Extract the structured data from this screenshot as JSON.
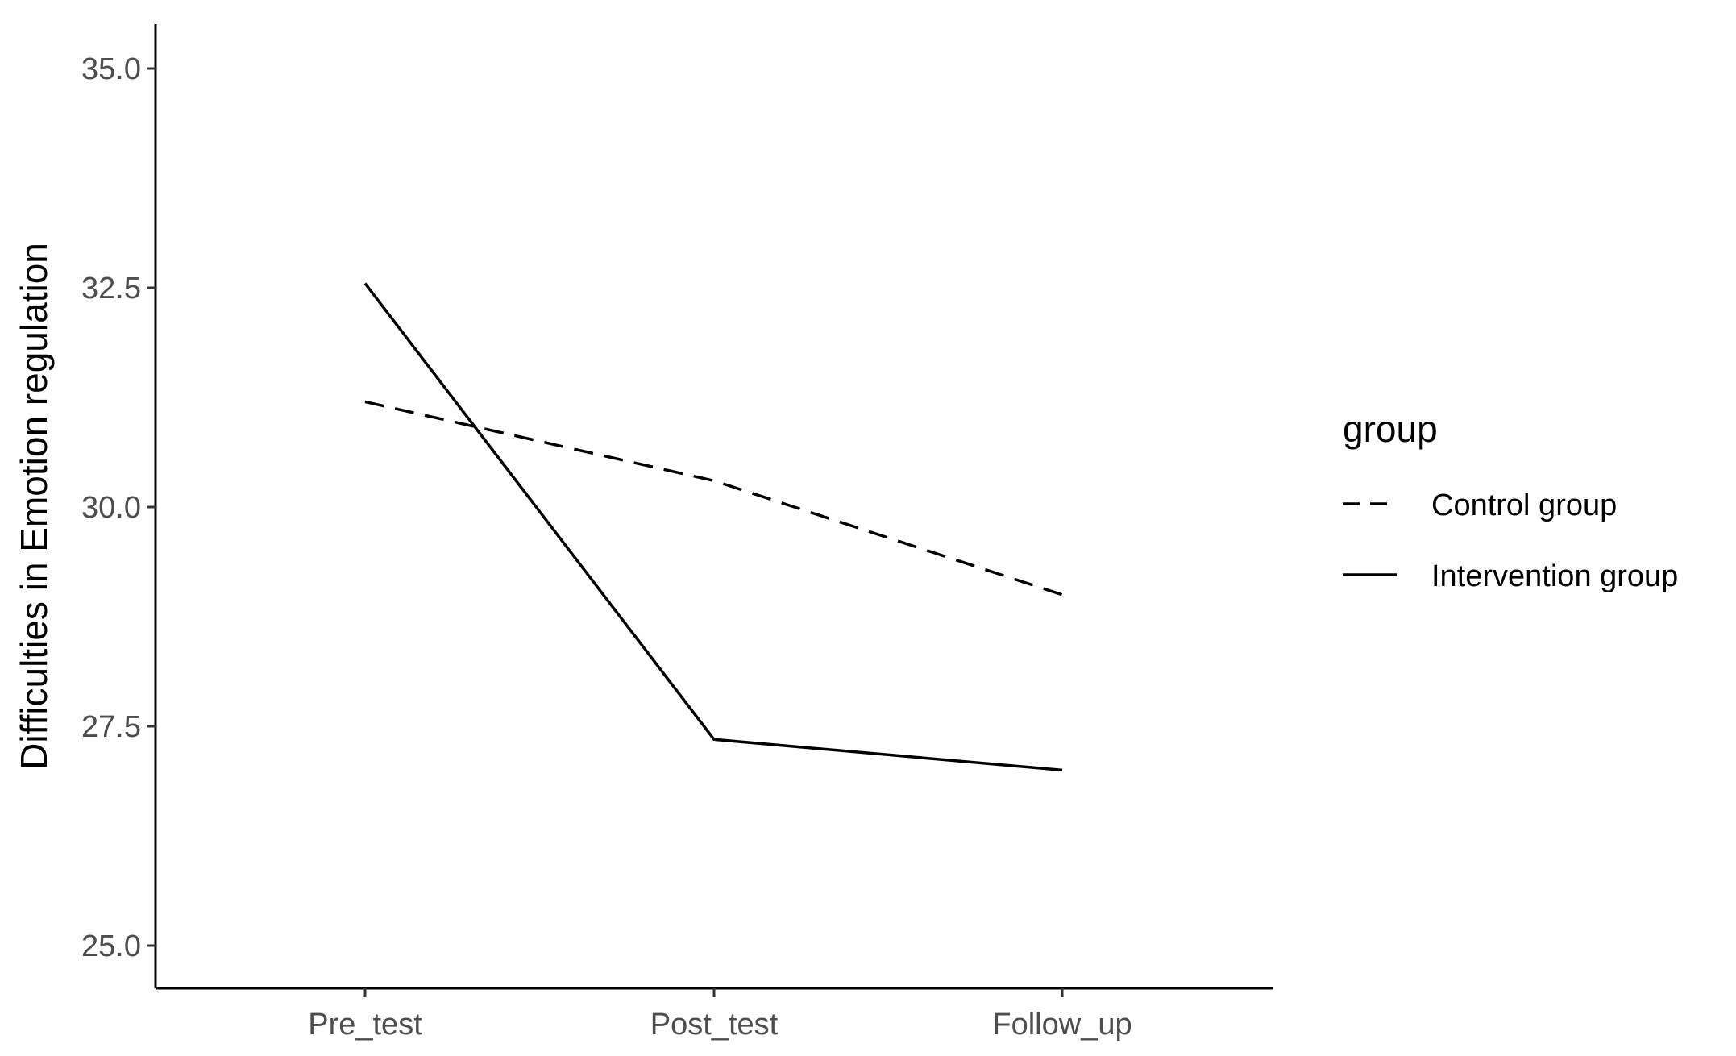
{
  "chart_data": {
    "type": "line",
    "categories": [
      "Pre_test",
      "Post_test",
      "Follow_up"
    ],
    "series": [
      {
        "name": "Control group",
        "values": [
          31.2,
          30.3,
          29.0
        ],
        "line_style": "dashed",
        "color": "#000000"
      },
      {
        "name": "Intervention group",
        "values": [
          32.55,
          27.35,
          27.0
        ],
        "line_style": "solid",
        "color": "#000000"
      }
    ],
    "title": "",
    "xlabel": "",
    "ylabel": "Difficulties in Emotion regulation",
    "ylim": [
      24.5,
      35.5
    ],
    "yticks": [
      "25.0",
      "27.5",
      "30.0",
      "32.5",
      "35.0"
    ],
    "grid": false,
    "legend": {
      "title": "group",
      "position": "right"
    }
  }
}
